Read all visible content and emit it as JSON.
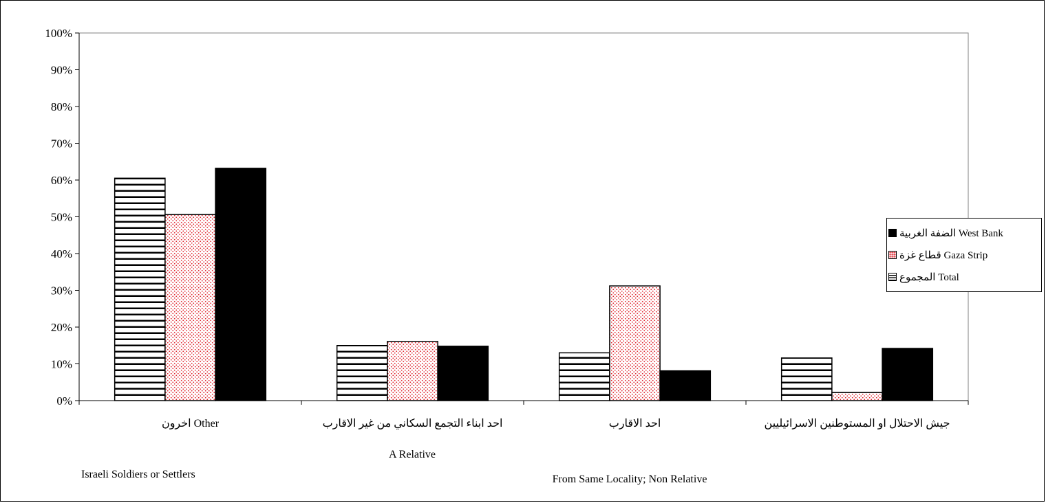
{
  "chart_data": {
    "type": "bar",
    "title": "",
    "xlabel": "",
    "ylabel": "",
    "ylim": [
      0,
      100
    ],
    "yticks": [
      "0%",
      "10%",
      "20%",
      "30%",
      "40%",
      "50%",
      "60%",
      "70%",
      "80%",
      "90%",
      "100%"
    ],
    "categories": [
      "اخرون Other",
      "احد ابناء التجمع السكاني من غير الاقارب",
      "احد الاقارب",
      "جيش الاحتلال او المستوطنين الاسرائيليين"
    ],
    "english_labels": {
      "a_relative": "A Relative",
      "israeli_soldiers": "Israeli Soldiers or Settlers",
      "same_locality": "From Same Locality; Non Relative"
    },
    "series": [
      {
        "name": "المجموع Total",
        "pattern": "horizontal-stripes",
        "values": [
          60.5,
          15.0,
          13.0,
          11.6
        ]
      },
      {
        "name": "قطاع غزة Gaza Strip",
        "pattern": "red-dots",
        "values": [
          50.6,
          16.1,
          31.2,
          2.2
        ]
      },
      {
        "name": "الضفة الغربية West Bank",
        "pattern": "solid-black",
        "values": [
          63.2,
          14.8,
          8.1,
          14.2
        ]
      }
    ],
    "legend": {
      "position": "right",
      "items": [
        "الضفة الغربية West Bank",
        "قطاع غزة Gaza Strip",
        "المجموع Total"
      ]
    },
    "colors": {
      "dots": "#e0202a",
      "solid": "#000000",
      "plot_border": "#808080"
    },
    "grid": false
  }
}
